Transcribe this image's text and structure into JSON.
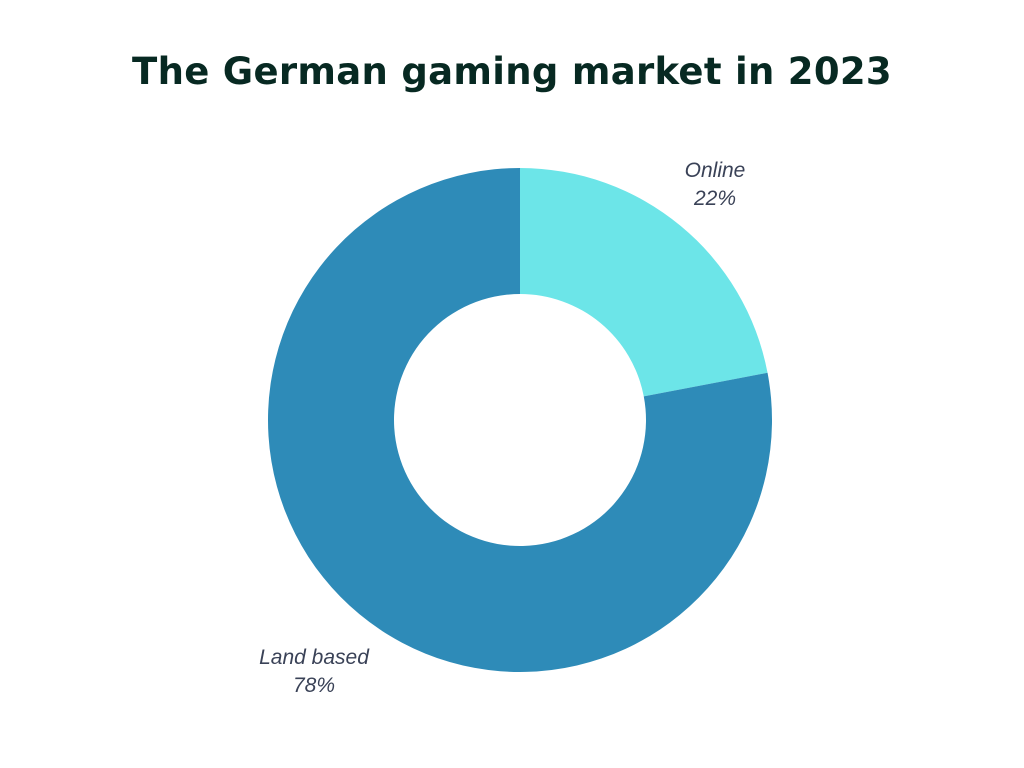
{
  "chart_data": {
    "type": "pie",
    "variant": "donut",
    "title": "The German gaming market in 2023",
    "slices": [
      {
        "label": "Online",
        "value": 22,
        "value_label": "22%",
        "color": "#6ce5e8"
      },
      {
        "label": "Land based",
        "value": 78,
        "value_label": "78%",
        "color": "#2e8bb8"
      }
    ],
    "title_color": "#072922",
    "label_color": "#3a4257"
  }
}
